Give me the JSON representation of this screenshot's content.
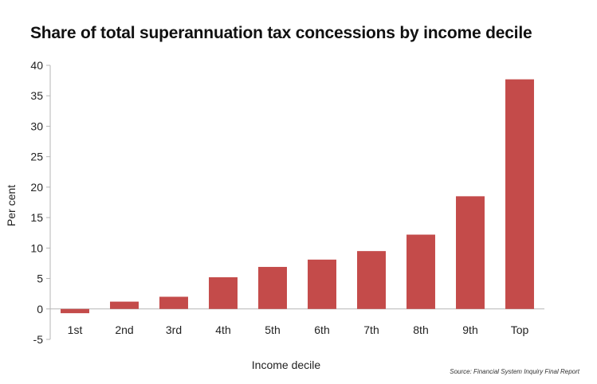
{
  "chart_data": {
    "type": "bar",
    "title": "Share of total superannuation tax concessions by income decile",
    "xlabel": "Income decile",
    "ylabel": "Per cent",
    "categories": [
      "1st",
      "2nd",
      "3rd",
      "4th",
      "5th",
      "6th",
      "7th",
      "8th",
      "9th",
      "Top"
    ],
    "values": [
      -0.7,
      1.2,
      2.0,
      5.2,
      6.9,
      8.1,
      9.5,
      12.2,
      18.5,
      37.7
    ],
    "ylim": [
      -5,
      40
    ],
    "yticks": [
      -5,
      0,
      5,
      10,
      15,
      20,
      25,
      30,
      35,
      40
    ],
    "grid": false,
    "legend": "none",
    "bar_color": "#c44b4a",
    "source": "Source: Financial System Inquiry Final Report"
  }
}
